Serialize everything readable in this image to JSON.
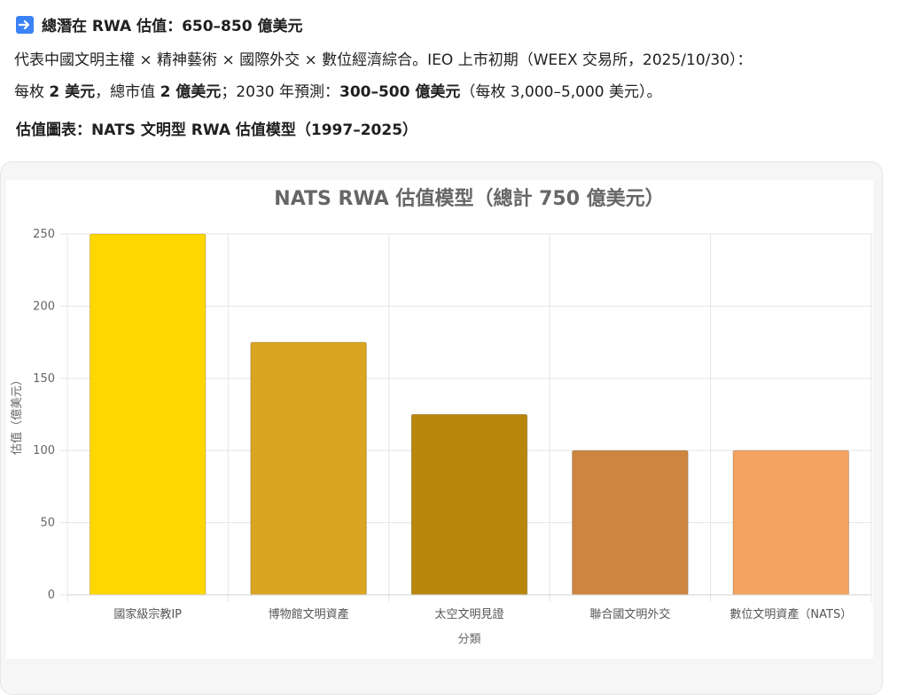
{
  "header": {
    "icon": "right-arrow-icon",
    "title": "總潛在 RWA 估值：650–850 億美元"
  },
  "intro": {
    "line1_text": "代表中國文明主權 × 精神藝術 × 國際外交 × 數位經濟綜合。IEO 上市初期（WEEX 交易所，2025/10/30）：",
    "line2_parts": [
      {
        "text": "每枚 ",
        "bold": false
      },
      {
        "text": "2 美元",
        "bold": true
      },
      {
        "text": "，總市值 ",
        "bold": false
      },
      {
        "text": "2 億美元",
        "bold": true
      },
      {
        "text": "；2030 年預測：",
        "bold": false
      },
      {
        "text": "300–500 億美元",
        "bold": true
      },
      {
        "text": "（每枚 3,000–5,000 美元）。",
        "bold": false
      }
    ]
  },
  "chart_heading": "估值圖表：NATS 文明型 RWA 估值模型（1997–2025）",
  "chart_data": {
    "type": "bar",
    "title": "NATS RWA 估值模型（總計 750 億美元）",
    "xlabel": "分類",
    "ylabel": "估值（億美元）",
    "ylim": [
      0,
      250
    ],
    "yticks": [
      0,
      50,
      100,
      150,
      200,
      250
    ],
    "categories": [
      "國家級宗教IP",
      "博物館文明資產",
      "太空文明見證",
      "聯合國文明外交",
      "數位文明資產（NATS）"
    ],
    "values": [
      250,
      175,
      125,
      100,
      100
    ],
    "colors": [
      "#ffd700",
      "#daa520",
      "#b8860b",
      "#cd853f",
      "#f4a460"
    ],
    "grid": true,
    "legend": "none"
  }
}
